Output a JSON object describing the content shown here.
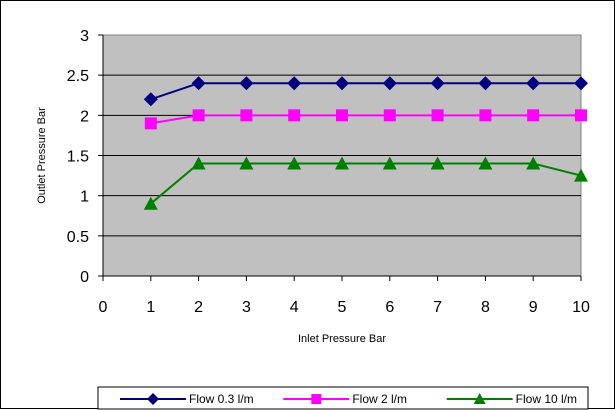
{
  "chart_data": {
    "type": "line",
    "title": "",
    "xlabel": "Inlet Pressure Bar",
    "ylabel": "Outlet Pressure Bar",
    "xlim": [
      0,
      10
    ],
    "ylim": [
      0,
      3
    ],
    "xticks": [
      "0",
      "1",
      "2",
      "3",
      "4",
      "5",
      "6",
      "7",
      "8",
      "9",
      "10"
    ],
    "yticks": [
      "0",
      "0.5",
      "1",
      "1.5",
      "2",
      "2.5",
      "3"
    ],
    "grid": true,
    "legend_position": "bottom",
    "x": [
      1,
      2,
      3,
      4,
      5,
      6,
      7,
      8,
      9,
      10
    ],
    "series": [
      {
        "name": "Flow 0.3 l/m",
        "color": "#000080",
        "marker": "diamond",
        "values": [
          2.2,
          2.4,
          2.4,
          2.4,
          2.4,
          2.4,
          2.4,
          2.4,
          2.4,
          2.4
        ]
      },
      {
        "name": "Flow 2 l/m",
        "color": "#FF00FF",
        "marker": "square",
        "values": [
          1.9,
          2.0,
          2.0,
          2.0,
          2.0,
          2.0,
          2.0,
          2.0,
          2.0,
          2.0
        ]
      },
      {
        "name": "Flow 10 l/m",
        "color": "#008000",
        "marker": "triangle",
        "values": [
          0.9,
          1.4,
          1.4,
          1.4,
          1.4,
          1.4,
          1.4,
          1.4,
          1.4,
          1.25
        ]
      }
    ],
    "plot_background": "#C0C0C0"
  }
}
